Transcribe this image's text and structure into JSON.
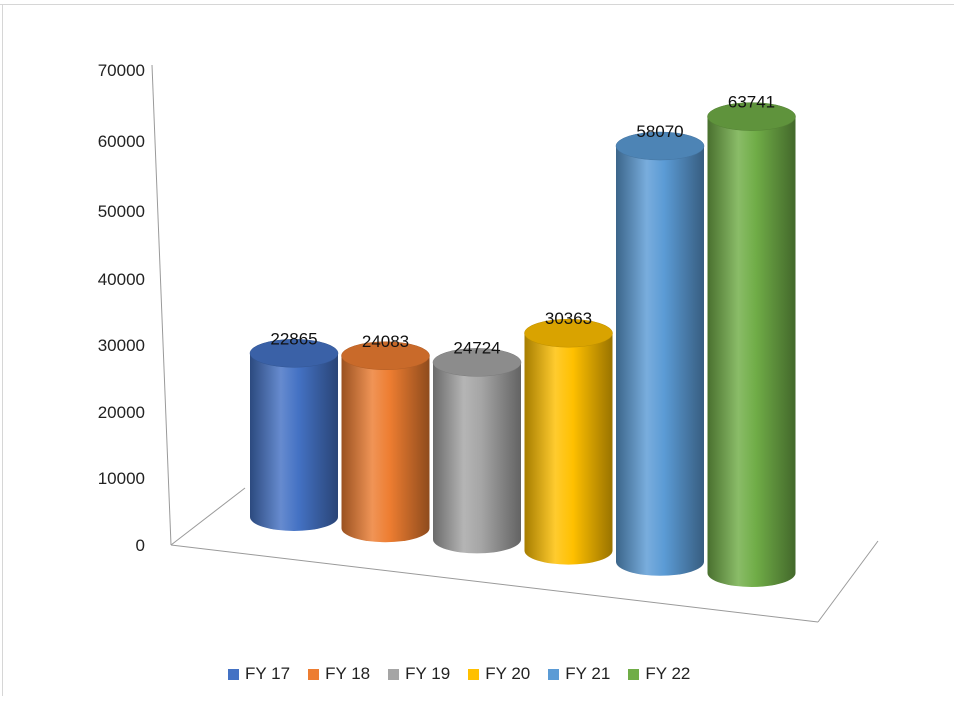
{
  "chart_data": {
    "type": "bar",
    "style": "3d-cylinder",
    "categories": [
      "FY 17",
      "FY 18",
      "FY 19",
      "FY 20",
      "FY 21",
      "FY 22"
    ],
    "values": [
      22865,
      24083,
      24724,
      30363,
      58070,
      63741
    ],
    "data_labels": [
      "22865",
      "24083",
      "24724",
      "30363",
      "58070",
      "63741"
    ],
    "colors": [
      "#4472c4",
      "#ed7d31",
      "#a5a5a5",
      "#ffc000",
      "#5b9bd5",
      "#70ad47"
    ],
    "yticks": [
      "0",
      "10000",
      "20000",
      "30000",
      "40000",
      "50000",
      "60000",
      "70000"
    ],
    "ylim": [
      0,
      70000
    ],
    "legend": {
      "position": "bottom",
      "entries": [
        "FY 17",
        "FY 18",
        "FY 19",
        "FY 20",
        "FY 21",
        "FY 22"
      ]
    },
    "grid": false,
    "title": "",
    "xlabel": "",
    "ylabel": ""
  }
}
